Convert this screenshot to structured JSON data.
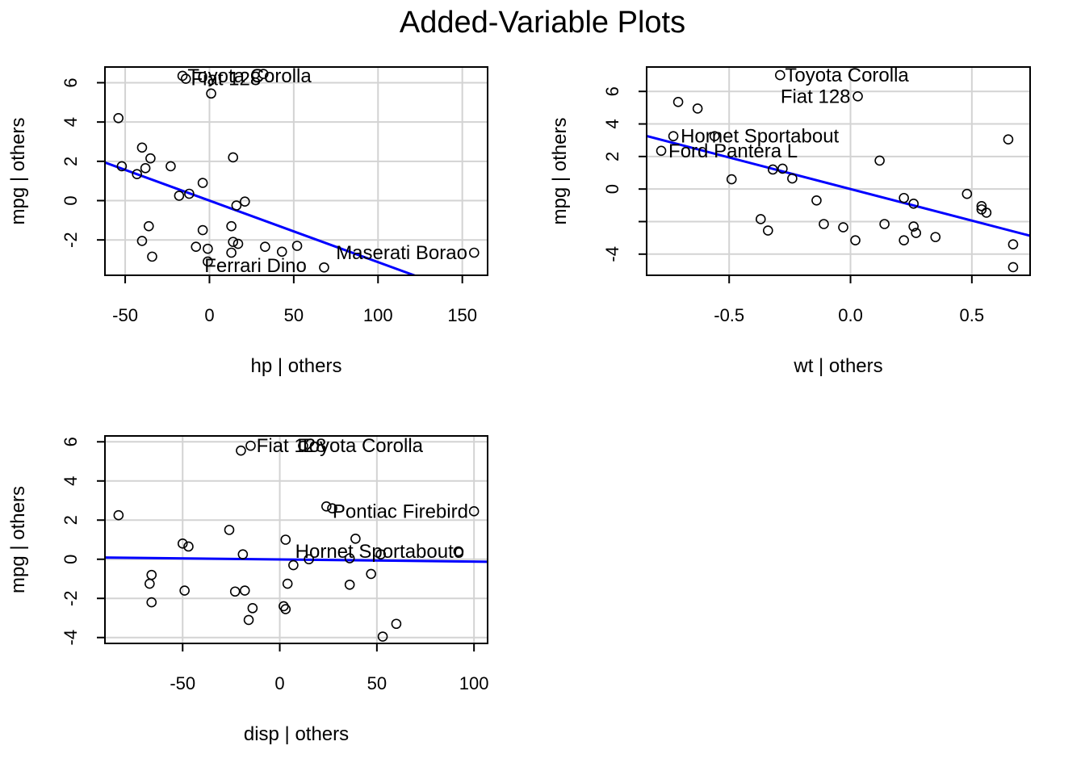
{
  "title": "Added-Variable Plots",
  "chart_data": [
    {
      "type": "scatter",
      "xlabel": "hp | others",
      "ylabel": "mpg  | others",
      "xlim": [
        -62,
        165
      ],
      "ylim": [
        -3.8,
        6.8
      ],
      "xticks": [
        -50,
        0,
        50,
        100,
        150
      ],
      "yticks": [
        -2,
        0,
        2,
        4,
        6
      ],
      "grid": true,
      "line_color": "#0000ff",
      "fit_line": {
        "slope": -0.0313,
        "intercept": 0.0
      },
      "points": [
        {
          "x": -16,
          "y": 6.35
        },
        {
          "x": -14,
          "y": 6.2
        },
        {
          "x": 32,
          "y": 6.45
        },
        {
          "x": 1,
          "y": 5.45
        },
        {
          "x": -54,
          "y": 4.2
        },
        {
          "x": -40,
          "y": 2.7
        },
        {
          "x": -35,
          "y": 2.15
        },
        {
          "x": -23,
          "y": 1.75
        },
        {
          "x": -52,
          "y": 1.75
        },
        {
          "x": -38,
          "y": 1.65
        },
        {
          "x": -43,
          "y": 1.35
        },
        {
          "x": 14,
          "y": 2.2
        },
        {
          "x": -4,
          "y": 0.9
        },
        {
          "x": -12,
          "y": 0.35
        },
        {
          "x": -18,
          "y": 0.25
        },
        {
          "x": 21,
          "y": -0.05
        },
        {
          "x": 16,
          "y": -0.25
        },
        {
          "x": -36,
          "y": -1.3
        },
        {
          "x": 13,
          "y": -1.3
        },
        {
          "x": -4,
          "y": -1.5
        },
        {
          "x": -40,
          "y": -2.05
        },
        {
          "x": 14,
          "y": -2.1
        },
        {
          "x": 17,
          "y": -2.2
        },
        {
          "x": -8,
          "y": -2.35
        },
        {
          "x": -1,
          "y": -2.45
        },
        {
          "x": 33,
          "y": -2.35
        },
        {
          "x": 52,
          "y": -2.3
        },
        {
          "x": 13,
          "y": -2.65
        },
        {
          "x": 43,
          "y": -2.6
        },
        {
          "x": 157,
          "y": -2.65
        },
        {
          "x": -34,
          "y": -2.85
        },
        {
          "x": -1,
          "y": -3.1
        },
        {
          "x": 68,
          "y": -3.4
        }
      ],
      "labels": [
        {
          "text": "Toyota Corolla",
          "x": -13,
          "y": 6.35,
          "anchor": "start"
        },
        {
          "text": "Fiat 128",
          "x": -11,
          "y": 6.2,
          "anchor": "start"
        },
        {
          "text": "Maserati Borao",
          "x": 153,
          "y": -2.65,
          "anchor": "end"
        },
        {
          "text": "Ferrari Dino",
          "x": -3,
          "y": -3.3,
          "anchor": "start"
        }
      ]
    },
    {
      "type": "scatter",
      "xlabel": "wt | others",
      "ylabel": "mpg  | others",
      "xlim": [
        -0.84,
        0.74
      ],
      "ylim": [
        -5.3,
        7.5
      ],
      "xticks": [
        -0.5,
        0.0,
        0.5
      ],
      "xtick_labels": [
        "-0.5",
        "0.0",
        "0.5"
      ],
      "yticks": [
        -4,
        -2,
        0,
        2,
        4,
        6
      ],
      "ytick_labels": [
        "-4",
        "",
        "0",
        "2",
        "4",
        "6"
      ],
      "grid": true,
      "line_color": "#0000ff",
      "fit_line": {
        "slope": -3.88,
        "intercept": 0.0
      },
      "points": [
        {
          "x": -0.29,
          "y": 7.0
        },
        {
          "x": 0.03,
          "y": 5.7
        },
        {
          "x": -0.71,
          "y": 5.35
        },
        {
          "x": -0.63,
          "y": 4.95
        },
        {
          "x": -0.73,
          "y": 3.25
        },
        {
          "x": -0.56,
          "y": 3.25
        },
        {
          "x": -0.78,
          "y": 2.35
        },
        {
          "x": 0.65,
          "y": 3.05
        },
        {
          "x": 0.12,
          "y": 1.75
        },
        {
          "x": -0.32,
          "y": 1.2
        },
        {
          "x": -0.28,
          "y": 1.25
        },
        {
          "x": -0.49,
          "y": 0.6
        },
        {
          "x": -0.24,
          "y": 0.65
        },
        {
          "x": 0.48,
          "y": -0.3
        },
        {
          "x": 0.22,
          "y": -0.55
        },
        {
          "x": -0.14,
          "y": -0.7
        },
        {
          "x": 0.26,
          "y": -0.9
        },
        {
          "x": 0.54,
          "y": -1.05
        },
        {
          "x": 0.54,
          "y": -1.25
        },
        {
          "x": 0.56,
          "y": -1.45
        },
        {
          "x": -0.37,
          "y": -1.85
        },
        {
          "x": -0.11,
          "y": -2.15
        },
        {
          "x": 0.14,
          "y": -2.15
        },
        {
          "x": -0.03,
          "y": -2.35
        },
        {
          "x": 0.26,
          "y": -2.3
        },
        {
          "x": -0.34,
          "y": -2.55
        },
        {
          "x": 0.27,
          "y": -2.7
        },
        {
          "x": 0.35,
          "y": -2.95
        },
        {
          "x": 0.02,
          "y": -3.15
        },
        {
          "x": 0.22,
          "y": -3.15
        },
        {
          "x": 0.67,
          "y": -3.4
        },
        {
          "x": 0.67,
          "y": -4.8
        }
      ],
      "labels": [
        {
          "text": "Toyota Corolla",
          "x": -0.27,
          "y": 7.0,
          "anchor": "start"
        },
        {
          "text": "Fiat 128",
          "x": 0.0,
          "y": 5.7,
          "anchor": "end"
        },
        {
          "text": "Hornet Sportabout",
          "x": -0.7,
          "y": 3.25,
          "anchor": "start"
        },
        {
          "text": "Ford Pantera L",
          "x": -0.75,
          "y": 2.35,
          "anchor": "start"
        }
      ]
    },
    {
      "type": "scatter",
      "xlabel": "disp | others",
      "ylabel": "mpg  | others",
      "xlim": [
        -90,
        107
      ],
      "ylim": [
        -4.3,
        6.3
      ],
      "xticks": [
        -50,
        0,
        50,
        100
      ],
      "yticks": [
        -4,
        -2,
        0,
        2,
        4,
        6
      ],
      "grid": true,
      "line_color": "#0000ff",
      "fit_line": {
        "slope": -0.0011,
        "intercept": -0.01
      },
      "points": [
        {
          "x": -15,
          "y": 5.8
        },
        {
          "x": -20,
          "y": 5.55
        },
        {
          "x": 12,
          "y": 5.8
        },
        {
          "x": -83,
          "y": 2.25
        },
        {
          "x": 24,
          "y": 2.7
        },
        {
          "x": 27,
          "y": 2.6
        },
        {
          "x": 100,
          "y": 2.45
        },
        {
          "x": -26,
          "y": 1.5
        },
        {
          "x": 3,
          "y": 1.0
        },
        {
          "x": 39,
          "y": 1.05
        },
        {
          "x": -50,
          "y": 0.8
        },
        {
          "x": -47,
          "y": 0.65
        },
        {
          "x": -19,
          "y": 0.25
        },
        {
          "x": 92,
          "y": 0.4
        },
        {
          "x": 15,
          "y": 0.0
        },
        {
          "x": 36,
          "y": 0.05
        },
        {
          "x": 52,
          "y": 0.25
        },
        {
          "x": 7,
          "y": -0.3
        },
        {
          "x": -66,
          "y": -0.8
        },
        {
          "x": 47,
          "y": -0.75
        },
        {
          "x": -67,
          "y": -1.25
        },
        {
          "x": 4,
          "y": -1.25
        },
        {
          "x": 36,
          "y": -1.3
        },
        {
          "x": -49,
          "y": -1.6
        },
        {
          "x": -23,
          "y": -1.65
        },
        {
          "x": -18,
          "y": -1.6
        },
        {
          "x": -66,
          "y": -2.2
        },
        {
          "x": -14,
          "y": -2.5
        },
        {
          "x": 2,
          "y": -2.4
        },
        {
          "x": 3,
          "y": -2.55
        },
        {
          "x": -16,
          "y": -3.1
        },
        {
          "x": 60,
          "y": -3.3
        },
        {
          "x": 53,
          "y": -3.95
        }
      ],
      "labels": [
        {
          "text": "Fiat 128",
          "x": -12,
          "y": 5.8,
          "anchor": "start"
        },
        {
          "text": "Toyota Corolla",
          "x": 10,
          "y": 5.8,
          "anchor": "start"
        },
        {
          "text": "Pontiac Firebird",
          "x": 97,
          "y": 2.45,
          "anchor": "end"
        },
        {
          "text": "Hornet Sportabouto",
          "x": 95,
          "y": 0.4,
          "anchor": "end"
        }
      ]
    }
  ]
}
